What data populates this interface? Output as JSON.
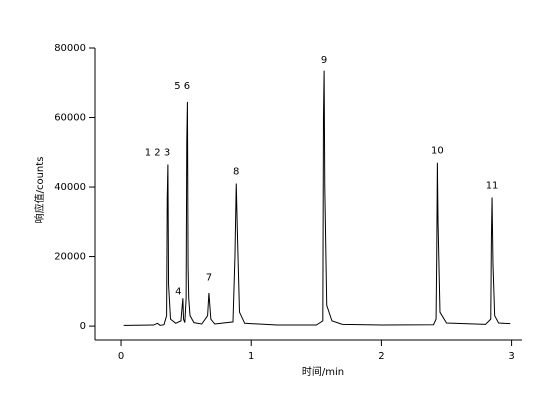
{
  "chart_data": {
    "type": "line",
    "x_label": "时间/min",
    "y_label": "响应值/counts",
    "xlim": [
      -0.2,
      3.08
    ],
    "xticks": [
      0,
      1,
      2,
      3
    ],
    "ylim": [
      -4000,
      80000
    ],
    "yticks": [
      0,
      20000,
      40000,
      60000,
      80000
    ],
    "grid": false,
    "color": "#000000",
    "x": [
      0.02,
      0.25,
      0.28,
      0.3,
      0.33,
      0.35,
      0.355,
      0.36,
      0.365,
      0.38,
      0.42,
      0.46,
      0.475,
      0.48,
      0.49,
      0.5,
      0.505,
      0.51,
      0.515,
      0.52,
      0.53,
      0.56,
      0.62,
      0.665,
      0.675,
      0.69,
      0.72,
      0.86,
      0.875,
      0.885,
      0.895,
      0.91,
      0.95,
      1.2,
      1.5,
      1.55,
      1.555,
      1.56,
      1.565,
      1.58,
      1.62,
      1.7,
      2.0,
      2.4,
      2.42,
      2.425,
      2.43,
      2.435,
      2.45,
      2.5,
      2.8,
      2.84,
      2.845,
      2.85,
      2.857,
      2.87,
      2.9,
      2.99
    ],
    "values": [
      200,
      300,
      800,
      200,
      400,
      3000,
      37000,
      46500,
      12000,
      2000,
      800,
      1500,
      8000,
      2000,
      1000,
      8000,
      53000,
      64500,
      17000,
      8000,
      3000,
      1000,
      600,
      3000,
      9500,
      2000,
      600,
      1200,
      20000,
      41000,
      25000,
      4000,
      800,
      300,
      300,
      1500,
      60000,
      73500,
      40000,
      6000,
      1500,
      500,
      300,
      400,
      2000,
      20000,
      47000,
      30000,
      4000,
      900,
      500,
      2000,
      25000,
      37000,
      18000,
      3000,
      900,
      700
    ],
    "annotations": [
      {
        "text": "1 2 3",
        "x": 0.28,
        "y": 50000
      },
      {
        "text": "4",
        "x": 0.44,
        "y": 10000
      },
      {
        "text": "5 6",
        "x": 0.47,
        "y": 69000
      },
      {
        "text": "7",
        "x": 0.675,
        "y": 14000
      },
      {
        "text": "8",
        "x": 0.885,
        "y": 44500
      },
      {
        "text": "9",
        "x": 1.56,
        "y": 76500
      },
      {
        "text": "10",
        "x": 2.43,
        "y": 50500
      },
      {
        "text": "11",
        "x": 2.85,
        "y": 40500
      }
    ]
  }
}
